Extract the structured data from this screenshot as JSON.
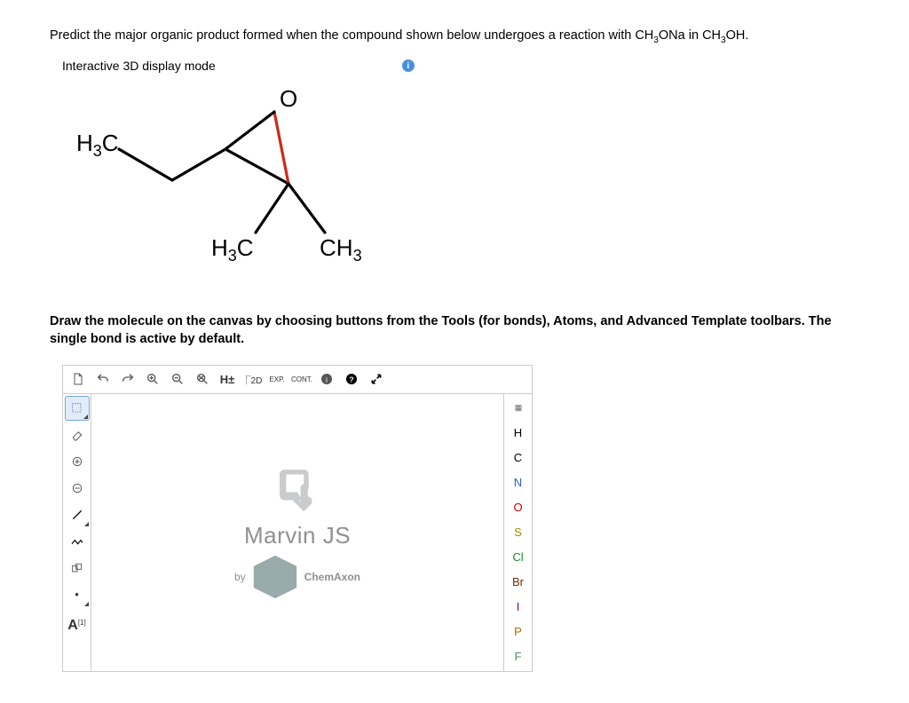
{
  "question": {
    "prefix": "Predict the major organic product formed when the compound shown below undergoes a reaction with CH",
    "sub1": "3",
    "mid1": "ONa in CH",
    "sub2": "3",
    "suffix": "OH."
  },
  "display_mode_label": "Interactive 3D display mode",
  "molecule": {
    "labels": {
      "h3c_left": "H₃C",
      "h3c_bottom": "H₃C",
      "ch3_right": "CH₃",
      "o_top": "O"
    }
  },
  "instructions": "Draw the molecule on the canvas by choosing buttons from the Tools (for bonds), Atoms, and Advanced Template toolbars. The single bond is active by default.",
  "editor": {
    "top_tools": [
      {
        "name": "new-icon"
      },
      {
        "name": "undo-icon"
      },
      {
        "name": "redo-icon"
      },
      {
        "name": "zoom-in-icon"
      },
      {
        "name": "zoom-out-icon"
      },
      {
        "name": "zoom-fit-icon"
      },
      {
        "name": "hplus-icon",
        "label": "H±"
      },
      {
        "name": "2d-icon",
        "label": "2D"
      },
      {
        "name": "exp-icon",
        "label": "EXP."
      },
      {
        "name": "cont-icon",
        "label": "CONT."
      },
      {
        "name": "info2-icon"
      },
      {
        "name": "help-icon"
      },
      {
        "name": "expand-icon"
      }
    ],
    "left_tools": [
      {
        "name": "select-tool",
        "selected": true,
        "tri": true
      },
      {
        "name": "erase-tool",
        "tri": false
      },
      {
        "name": "charge-plus-tool",
        "tri": false
      },
      {
        "name": "charge-minus-tool",
        "tri": false
      },
      {
        "name": "bond-tool",
        "tri": true
      },
      {
        "name": "chain-tool",
        "tri": false
      },
      {
        "name": "template-tool",
        "tri": false
      },
      {
        "name": "abbrev-tool",
        "tri": true
      },
      {
        "name": "atom-label-tool",
        "tri": false
      }
    ],
    "atoms": [
      {
        "sym": "H",
        "color": "#000000"
      },
      {
        "sym": "C",
        "color": "#000000"
      },
      {
        "sym": "N",
        "color": "#2b5fc1"
      },
      {
        "sym": "O",
        "color": "#cc0000"
      },
      {
        "sym": "S",
        "color": "#a08b00"
      },
      {
        "sym": "Cl",
        "color": "#1f8a1f"
      },
      {
        "sym": "Br",
        "color": "#7a2a00"
      },
      {
        "sym": "I",
        "color": "#5a0a8a"
      },
      {
        "sym": "P",
        "color": "#b06a00"
      },
      {
        "sym": "F",
        "color": "#5a8a5a"
      }
    ],
    "watermark": {
      "title": "Marvin JS",
      "by": "by",
      "brand": "ChemAxon"
    }
  },
  "colors": {
    "border": "#cccccc",
    "info_blue": "#4a90d9",
    "bond_black": "#000000",
    "bond_red": "#cc2b18"
  }
}
